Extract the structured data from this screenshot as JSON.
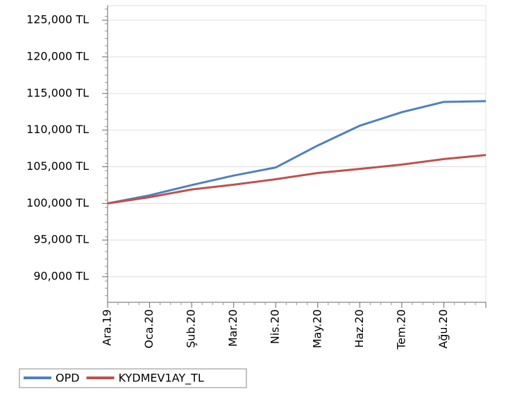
{
  "chart_data": {
    "type": "line",
    "categories": [
      "Ara.19",
      "Oca.20",
      "Şub.20",
      "Mar.20",
      "Nis.20",
      "May.20",
      "Haz.20",
      "Tem.20",
      "Ağu.20",
      null
    ],
    "series": [
      {
        "name": "OPD",
        "color": "#4f81bd",
        "values": [
          100000,
          101100,
          102500,
          103800,
          104900,
          107900,
          110600,
          112450,
          113850,
          113950
        ]
      },
      {
        "name": "KYDMEV1AY_TL",
        "color": "#c0504d",
        "values": [
          100000,
          100850,
          101900,
          102550,
          103300,
          104150,
          104700,
          105300,
          106050,
          106600
        ]
      }
    ],
    "ylim": [
      86500,
      127000
    ],
    "yticks": [
      {
        "value": 90000,
        "label": "90,000 TL"
      },
      {
        "value": 95000,
        "label": "95,000 TL"
      },
      {
        "value": 100000,
        "label": "100,000 TL"
      },
      {
        "value": 105000,
        "label": "105,000 TL"
      },
      {
        "value": 110000,
        "label": "110,000 TL"
      },
      {
        "value": 115000,
        "label": "115,000 TL"
      },
      {
        "value": 120000,
        "label": "120,000 TL"
      },
      {
        "value": 125000,
        "label": "125,000 TL"
      }
    ],
    "grid": true
  }
}
